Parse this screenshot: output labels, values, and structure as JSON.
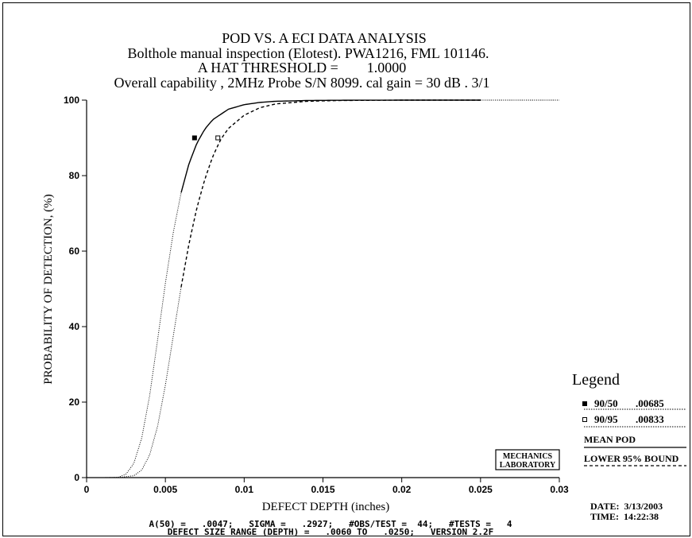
{
  "chart_data": {
    "type": "line",
    "title": "POD VS. A ECI DATA ANALYSIS",
    "subtitle_lines": [
      "Bolthole manual inspection (Elotest). PWA1216, FML 101146.",
      "A HAT THRESHOLD =        1.0000",
      "Overall capability , 2MHz Probe S/N 8099. cal gain = 30 dB . 3/1"
    ],
    "xlabel": "DEFECT DEPTH (inches)",
    "ylabel": "PROBABILITY OF DETECTION, (%)",
    "xlim": [
      0,
      0.03
    ],
    "ylim": [
      0,
      100
    ],
    "x_ticks": [
      0,
      0.005,
      0.01,
      0.015,
      0.02,
      0.025,
      0.03
    ],
    "x_tick_labels": [
      "0",
      "0.005",
      "0.01",
      "0.015",
      "0.02",
      "0.025",
      "0.03"
    ],
    "y_ticks": [
      0,
      20,
      40,
      60,
      80,
      100
    ],
    "y_tick_labels": [
      "0",
      "20",
      "40",
      "60",
      "80",
      "100"
    ],
    "series": [
      {
        "name": "MEAN POD",
        "style": "solid",
        "data_range_style": "dotted outside tested range",
        "x": [
          0,
          0.001,
          0.002,
          0.0025,
          0.003,
          0.0035,
          0.004,
          0.0045,
          0.005,
          0.0055,
          0.006,
          0.0065,
          0.007,
          0.0075,
          0.008,
          0.009,
          0.01,
          0.011,
          0.012,
          0.014,
          0.016,
          0.02,
          0.025,
          0.03
        ],
        "y": [
          0,
          0,
          0.1,
          0.9,
          3.8,
          10.5,
          21.7,
          36.3,
          51.5,
          64.9,
          75.5,
          83.2,
          88.6,
          92.3,
          94.8,
          97.6,
          98.8,
          99.4,
          99.7,
          99.9,
          99.97,
          100,
          100,
          100
        ]
      },
      {
        "name": "LOWER 95% BOUND",
        "style": "dashed",
        "data_range_style": "dotted outside tested range",
        "x": [
          0,
          0.001,
          0.002,
          0.003,
          0.0035,
          0.004,
          0.0045,
          0.005,
          0.0055,
          0.006,
          0.0065,
          0.007,
          0.0075,
          0.008,
          0.0085,
          0.009,
          0.01,
          0.011,
          0.012,
          0.014,
          0.016,
          0.02,
          0.025,
          0.03
        ],
        "y": [
          0,
          0,
          0,
          0.5,
          2.0,
          6.0,
          13.5,
          24.5,
          37.5,
          50.5,
          62.0,
          71.5,
          79.0,
          85.0,
          89.5,
          92.5,
          96.0,
          98.0,
          99.0,
          99.7,
          99.9,
          100,
          100,
          100
        ]
      }
    ],
    "markers": [
      {
        "label": "90/50",
        "value": ".00685",
        "x": 0.00685,
        "y": 90,
        "style": "filled"
      },
      {
        "label": "90/95",
        "value": ".00833",
        "x": 0.00833,
        "y": 90,
        "style": "open"
      }
    ],
    "tested_range": [
      0.006,
      0.025
    ],
    "legend": {
      "title": "Legend",
      "placement": "right",
      "entries": [
        {
          "marker": "filled-square",
          "label": "90/50",
          "value": ".00685"
        },
        {
          "marker": "open-square",
          "label": "90/95",
          "value": ".00833"
        },
        {
          "line": "solid",
          "label": "MEAN POD"
        },
        {
          "line": "dashed",
          "label": "LOWER 95% BOUND"
        }
      ]
    },
    "annotation_box": [
      "MECHANICS",
      "LABORATORY"
    ],
    "date_line": "DATE:  3/13/2003",
    "time_line": "TIME:  14:22:38",
    "footer_lines": [
      "A(50) =   .0047;   SIGMA =   .2927;   #OBS/TEST =  44;   #TESTS =   4",
      "DEFECT SIZE RANGE (DEPTH) =   .0060 TO   .0250;   VERSION 2.2F"
    ],
    "grid": false
  }
}
